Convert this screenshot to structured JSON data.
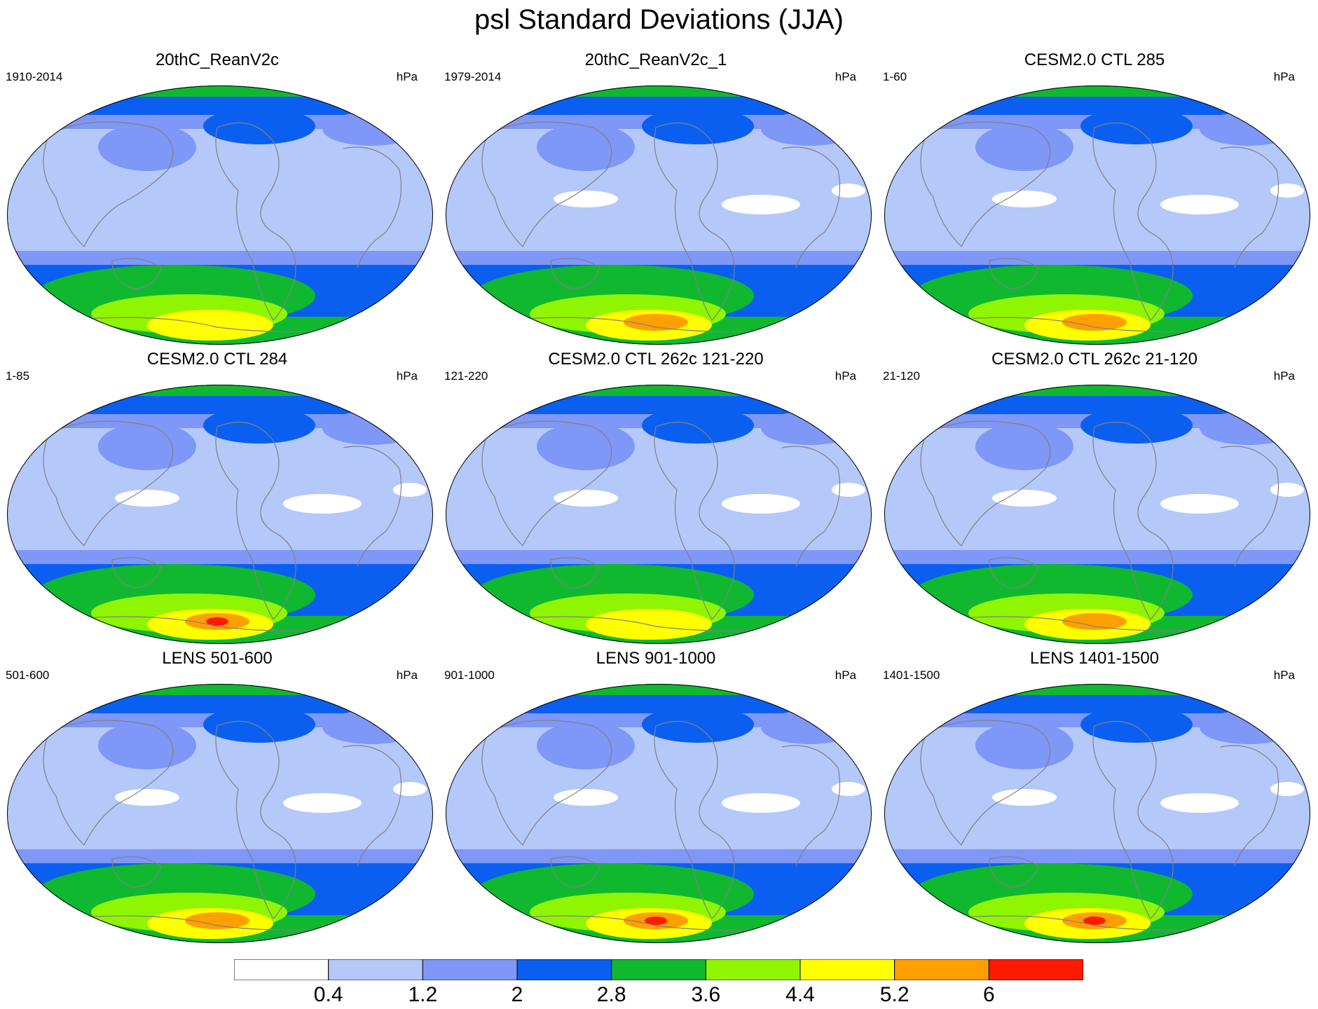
{
  "title": "psl Standard Deviations (JJA)",
  "colors": {
    "land_outline": "#808080",
    "map_border": "#000000",
    "levels_fill": [
      "#ffffff",
      "#b4c8fa",
      "#7f97f6",
      "#0a5ff0",
      "#10b830",
      "#8ff500",
      "#ffff00",
      "#ff9f00",
      "#ff1a00"
    ]
  },
  "panels": [
    {
      "title": "20thC_ReanV2c",
      "left_label": "1910-2014",
      "right_label": "hPa",
      "antarctic_max": 2,
      "tropic_white": 0
    },
    {
      "title": "20thC_ReanV2c_1",
      "left_label": "1979-2014",
      "right_label": "hPa",
      "antarctic_max": 3,
      "tropic_white": 1
    },
    {
      "title": "CESM2.0 CTL 285",
      "left_label": "1-60",
      "right_label": "hPa",
      "antarctic_max": 3,
      "tropic_white": 1
    },
    {
      "title": "CESM2.0 CTL 284",
      "left_label": "1-85",
      "right_label": "hPa",
      "antarctic_max": 4,
      "tropic_white": 1
    },
    {
      "title": "CESM2.0 CTL 262c 121-220",
      "left_label": "121-220",
      "right_label": "hPa",
      "antarctic_max": 2,
      "tropic_white": 1
    },
    {
      "title": "CESM2.0 CTL 262c 21-120",
      "left_label": "21-120",
      "right_label": "hPa",
      "antarctic_max": 3,
      "tropic_white": 1
    },
    {
      "title": "LENS 501-600",
      "left_label": "501-600",
      "right_label": "hPa",
      "antarctic_max": 3,
      "tropic_white": 1
    },
    {
      "title": "LENS 901-1000",
      "left_label": "901-1000",
      "right_label": "hPa",
      "antarctic_max": 4,
      "tropic_white": 1
    },
    {
      "title": "LENS 1401-1500",
      "left_label": "1401-1500",
      "right_label": "hPa",
      "antarctic_max": 4,
      "tropic_white": 1
    }
  ],
  "colorbar": {
    "labels": [
      "0.4",
      "1.2",
      "2",
      "2.8",
      "3.6",
      "4.4",
      "5.2",
      "6"
    ],
    "colors": [
      "#ffffff",
      "#b4c8fa",
      "#7f97f6",
      "#0a5ff0",
      "#10b830",
      "#8ff500",
      "#ffff00",
      "#ff9f00",
      "#ff1a00"
    ]
  }
}
